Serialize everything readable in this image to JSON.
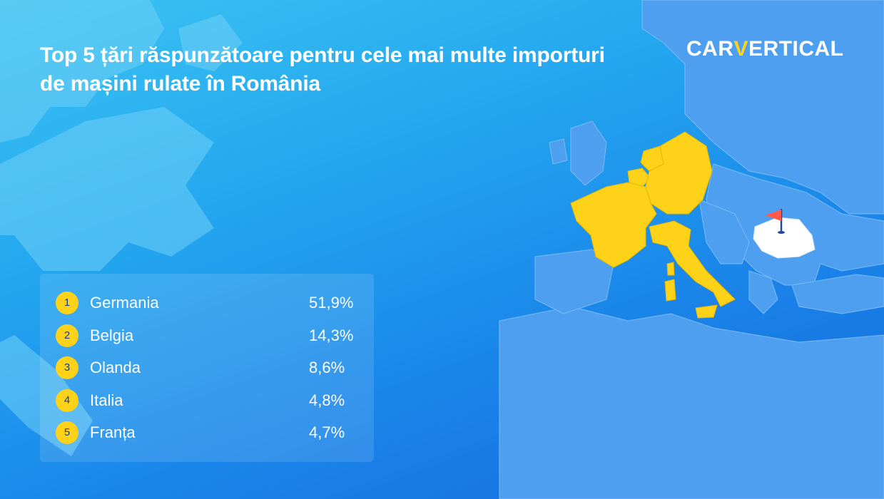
{
  "title": "Top 5 țări răspunzătoare pentru cele mai multe importuri de mașini rulate în România",
  "logo": {
    "part1": "CAR",
    "mark": "V",
    "part2": "ERTICAL"
  },
  "ranking": [
    {
      "rank": "1",
      "country": "Germania",
      "share": "51,9%"
    },
    {
      "rank": "2",
      "country": "Belgia",
      "share": "14,3%"
    },
    {
      "rank": "3",
      "country": "Olanda",
      "share": "8,6%"
    },
    {
      "rank": "4",
      "country": "Italia",
      "share": "4,8%"
    },
    {
      "rank": "5",
      "country": "Franța",
      "share": "4,7%"
    }
  ],
  "colors": {
    "highlight_countries": "#ffd21a",
    "target_country": "#ffffff",
    "flag": "#ff5a4a",
    "land": "#5aa8f2"
  },
  "map": {
    "highlighted": [
      "Germania",
      "Belgia",
      "Olanda",
      "Italia",
      "Franța"
    ],
    "destination": "România",
    "destination_marker": "flag-icon"
  }
}
